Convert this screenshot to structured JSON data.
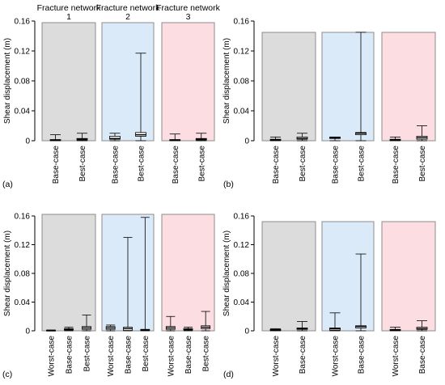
{
  "colors": {
    "network_1": "#dcdcdc",
    "network_2": "#dbeaf8",
    "network_3": "#fbdde2",
    "frame": "#8c8c8c",
    "box_fill": "#ffffff",
    "whisker": "#000000"
  },
  "chart_data": [
    {
      "type": "box",
      "panel_label": "(a)",
      "ylabel": "Shear displacement (m)",
      "ylim": [
        0,
        0.16
      ],
      "yticks": [
        "0",
        "0.04",
        "0.08",
        "0.12",
        "0.16"
      ],
      "grid": false,
      "groups": [
        {
          "title": "Fracture network\n1",
          "background": "network_1",
          "boxes": [
            {
              "category": "Base-case",
              "min": 0,
              "q1": 0.0005,
              "median": 0.001,
              "q3": 0.0015,
              "max": 0.008
            },
            {
              "category": "Best-case",
              "min": 0,
              "q1": 0.001,
              "median": 0.002,
              "q3": 0.003,
              "max": 0.01
            }
          ]
        },
        {
          "title": "Fracture network\n2",
          "background": "network_2",
          "boxes": [
            {
              "category": "Base-case",
              "min": 0,
              "q1": 0.002,
              "median": 0.003,
              "q3": 0.006,
              "max": 0.01
            },
            {
              "category": "Best-case",
              "min": 0,
              "q1": 0.006,
              "median": 0.008,
              "q3": 0.011,
              "max": 0.117
            }
          ]
        },
        {
          "title": "Fracture network\n3",
          "background": "network_3",
          "boxes": [
            {
              "category": "Base-case",
              "min": 0,
              "q1": 0.0005,
              "median": 0.001,
              "q3": 0.0015,
              "max": 0.009
            },
            {
              "category": "Best-case",
              "min": 0,
              "q1": 0.001,
              "median": 0.002,
              "q3": 0.003,
              "max": 0.01
            }
          ]
        }
      ]
    },
    {
      "type": "box",
      "panel_label": "(b)",
      "ylabel": "Shear displacement (m)",
      "ylim": [
        0,
        0.16
      ],
      "yticks": [
        "0",
        "0.04",
        "0.08",
        "0.12",
        "0.16"
      ],
      "grid": false,
      "groups": [
        {
          "title": "",
          "background": "network_1",
          "boxes": [
            {
              "category": "Base-case",
              "min": 0,
              "q1": 0.0005,
              "median": 0.001,
              "q3": 0.002,
              "max": 0.005
            },
            {
              "category": "Best-case",
              "min": 0,
              "q1": 0.002,
              "median": 0.003,
              "q3": 0.005,
              "max": 0.01
            }
          ]
        },
        {
          "title": "",
          "background": "network_2",
          "boxes": [
            {
              "category": "Base-case",
              "min": 0,
              "q1": 0.003,
              "median": 0.004,
              "q3": 0.005,
              "max": 0.005
            },
            {
              "category": "Best-case",
              "min": 0,
              "q1": 0.008,
              "median": 0.01,
              "q3": 0.011,
              "max": 0.145
            }
          ]
        },
        {
          "title": "",
          "background": "network_3",
          "boxes": [
            {
              "category": "Base-case",
              "min": 0,
              "q1": 0.0005,
              "median": 0.001,
              "q3": 0.002,
              "max": 0.005
            },
            {
              "category": "Best-case",
              "min": 0,
              "q1": 0.002,
              "median": 0.004,
              "q3": 0.006,
              "max": 0.02
            }
          ]
        }
      ]
    },
    {
      "type": "box",
      "panel_label": "(c)",
      "ylabel": "Shear displacement (m)",
      "ylim": [
        0,
        0.16
      ],
      "yticks": [
        "0",
        "0.04",
        "0.08",
        "0.12",
        "0.16"
      ],
      "grid": false,
      "groups": [
        {
          "title": "",
          "background": "network_1",
          "boxes": [
            {
              "category": "Worst-case",
              "min": 0,
              "q1": 0.0002,
              "median": 0.0005,
              "q3": 0.001,
              "max": 0.001
            },
            {
              "category": "Base-case",
              "min": 0,
              "q1": 0.001,
              "median": 0.002,
              "q3": 0.003,
              "max": 0.005
            },
            {
              "category": "Best-case",
              "min": 0,
              "q1": 0.002,
              "median": 0.004,
              "q3": 0.006,
              "max": 0.022
            }
          ]
        },
        {
          "title": "",
          "background": "network_2",
          "boxes": [
            {
              "category": "Worst-case",
              "min": 0,
              "q1": 0.002,
              "median": 0.004,
              "q3": 0.006,
              "max": 0.008
            },
            {
              "category": "Base-case",
              "min": 0,
              "q1": 0.0005,
              "median": 0.003,
              "q3": 0.005,
              "max": 0.13
            },
            {
              "category": "Best-case",
              "min": 0,
              "q1": 0.0005,
              "median": 0.001,
              "q3": 0.002,
              "max": 0.158
            }
          ]
        },
        {
          "title": "",
          "background": "network_3",
          "boxes": [
            {
              "category": "Worst-case",
              "min": 0,
              "q1": 0.002,
              "median": 0.004,
              "q3": 0.006,
              "max": 0.02
            },
            {
              "category": "Base-case",
              "min": 0,
              "q1": 0.001,
              "median": 0.002,
              "q3": 0.003,
              "max": 0.005
            },
            {
              "category": "Best-case",
              "min": 0,
              "q1": 0.003,
              "median": 0.005,
              "q3": 0.007,
              "max": 0.027
            }
          ]
        }
      ]
    },
    {
      "type": "box",
      "panel_label": "(d)",
      "ylabel": "Shear displacement (m)",
      "ylim": [
        0,
        0.16
      ],
      "yticks": [
        "0",
        "0.04",
        "0.08",
        "0.12",
        "0.16"
      ],
      "grid": false,
      "groups": [
        {
          "title": "",
          "background": "network_1",
          "boxes": [
            {
              "category": "Worst-case",
              "min": 0,
              "q1": 0.0005,
              "median": 0.001,
              "q3": 0.002,
              "max": 0.003
            },
            {
              "category": "Base-case",
              "min": 0,
              "q1": 0.002,
              "median": 0.003,
              "q3": 0.004,
              "max": 0.013
            }
          ]
        },
        {
          "title": "",
          "background": "network_2",
          "boxes": [
            {
              "category": "Worst-case",
              "min": 0,
              "q1": 0.001,
              "median": 0.003,
              "q3": 0.004,
              "max": 0.025
            },
            {
              "category": "Base-case",
              "min": 0,
              "q1": 0.004,
              "median": 0.006,
              "q3": 0.007,
              "max": 0.107
            }
          ]
        },
        {
          "title": "",
          "background": "network_3",
          "boxes": [
            {
              "category": "Worst-case",
              "min": 0,
              "q1": 0.0005,
              "median": 0.001,
              "q3": 0.002,
              "max": 0.005
            },
            {
              "category": "Base-case",
              "min": 0,
              "q1": 0.002,
              "median": 0.003,
              "q3": 0.005,
              "max": 0.014
            }
          ]
        }
      ]
    }
  ]
}
